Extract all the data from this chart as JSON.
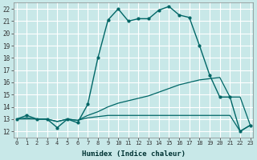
{
  "title": "",
  "xlabel": "Humidex (Indice chaleur)",
  "background_color": "#c8e8e8",
  "grid_color": "#ffffff",
  "line_color": "#006666",
  "x_ticks": [
    0,
    1,
    2,
    3,
    4,
    5,
    6,
    7,
    8,
    9,
    10,
    11,
    12,
    13,
    14,
    15,
    16,
    17,
    18,
    19,
    20,
    21,
    22,
    23
  ],
  "y_ticks": [
    12,
    13,
    14,
    15,
    16,
    17,
    18,
    19,
    20,
    21,
    22
  ],
  "xlim": [
    -0.3,
    23.3
  ],
  "ylim": [
    11.5,
    22.5
  ],
  "series": [
    {
      "x": [
        0,
        1,
        2,
        3,
        4,
        5,
        6,
        7,
        8,
        9,
        10,
        11,
        12,
        13,
        14,
        15,
        16,
        17,
        18,
        19,
        20,
        21,
        22,
        23
      ],
      "y": [
        13.0,
        13.3,
        13.0,
        13.0,
        12.3,
        13.0,
        12.7,
        14.2,
        18.0,
        21.1,
        22.0,
        21.0,
        21.2,
        21.2,
        21.9,
        22.2,
        21.5,
        21.3,
        19.0,
        16.6,
        14.8,
        14.8,
        12.0,
        12.5
      ],
      "markers": true,
      "linewidth": 1.0,
      "markersize": 2.0
    },
    {
      "x": [
        0,
        1,
        2,
        3,
        4,
        5,
        6,
        7,
        8,
        9,
        10,
        11,
        12,
        13,
        14,
        15,
        16,
        17,
        18,
        19,
        20,
        21,
        22,
        23
      ],
      "y": [
        13.0,
        13.1,
        13.0,
        13.0,
        12.8,
        13.0,
        12.9,
        13.3,
        13.6,
        14.0,
        14.3,
        14.5,
        14.7,
        14.9,
        15.2,
        15.5,
        15.8,
        16.0,
        16.2,
        16.3,
        16.4,
        14.8,
        14.8,
        12.5
      ],
      "markers": false,
      "linewidth": 0.9,
      "markersize": 0
    },
    {
      "x": [
        0,
        1,
        2,
        3,
        4,
        5,
        6,
        7,
        8,
        9,
        10,
        11,
        12,
        13,
        14,
        15,
        16,
        17,
        18,
        19,
        20,
        21,
        22,
        23
      ],
      "y": [
        13.0,
        13.0,
        13.0,
        13.0,
        12.8,
        13.0,
        12.9,
        13.1,
        13.2,
        13.3,
        13.3,
        13.3,
        13.3,
        13.3,
        13.3,
        13.3,
        13.3,
        13.3,
        13.3,
        13.3,
        13.3,
        13.3,
        12.0,
        12.5
      ],
      "markers": false,
      "linewidth": 0.9,
      "markersize": 0
    }
  ]
}
